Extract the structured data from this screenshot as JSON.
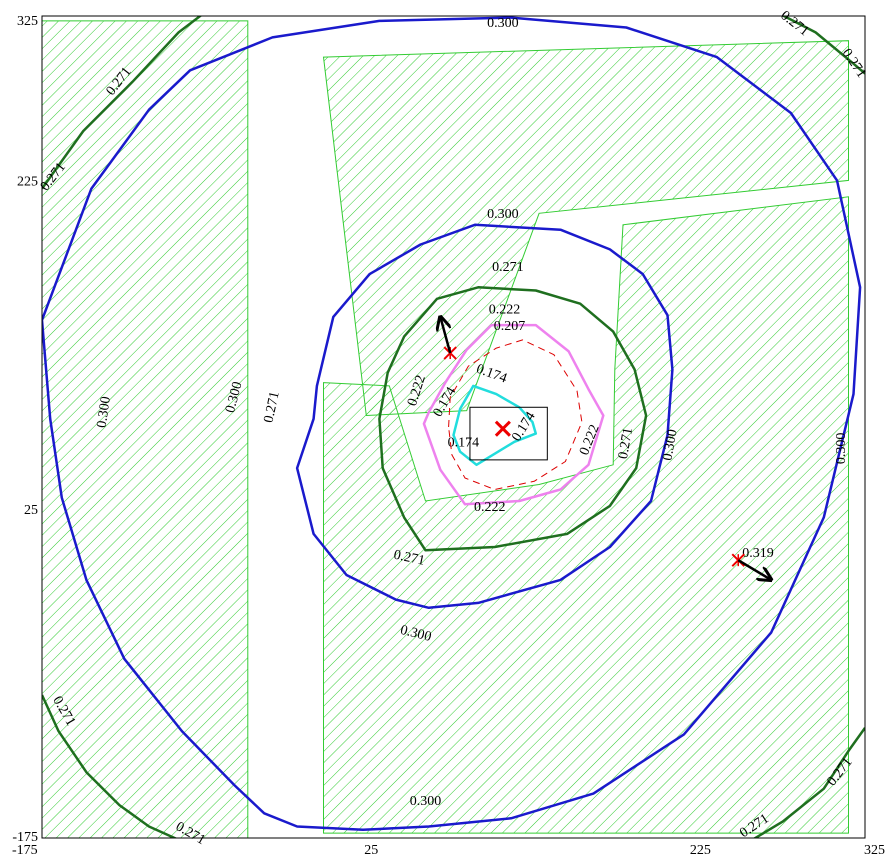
{
  "chart_data": {
    "type": "contour",
    "xlim": [
      -175,
      325
    ],
    "ylim": [
      -175,
      325
    ],
    "x_ticks": [
      "-175",
      "25",
      "225",
      "325"
    ],
    "y_ticks": [
      "325",
      "225",
      "25",
      "-175"
    ],
    "colors": {
      "hatch": "#33cc33",
      "c300": "#1a1acc",
      "c271": "#1f6f1f",
      "c222": "#ee82ee",
      "c207": "#dd0000",
      "c174": "#22dddd",
      "marker": "#ee0000",
      "frame": "#000000"
    },
    "hatched_regions": [
      {
        "name": "left-strip",
        "polygon": [
          [
            -175,
            322
          ],
          [
            -50,
            322
          ],
          [
            -50,
            -175
          ],
          [
            -175,
            -175
          ]
        ]
      },
      {
        "name": "upper-right",
        "polygon": [
          [
            -4,
            300
          ],
          [
            315,
            310
          ],
          [
            315,
            225
          ],
          [
            127,
            205
          ],
          [
            83,
            85
          ],
          [
            22,
            82
          ]
        ]
      },
      {
        "name": "lower-right",
        "polygon": [
          [
            -4,
            102
          ],
          [
            36,
            100
          ],
          [
            58,
            30
          ],
          [
            127,
            40
          ],
          [
            172,
            52
          ],
          [
            173,
            110
          ],
          [
            178,
            198
          ],
          [
            315,
            215
          ],
          [
            315,
            -172
          ],
          [
            -4,
            -172
          ],
          [
            -4,
            12
          ]
        ]
      }
    ],
    "contours": [
      {
        "level": "0.300",
        "color_key": "c300",
        "points": [
          [
            -175,
            140
          ],
          [
            -145,
            220
          ],
          [
            -110,
            268
          ],
          [
            -85,
            292
          ],
          [
            -35,
            312
          ],
          [
            30,
            322
          ],
          [
            110,
            324
          ],
          [
            180,
            318
          ],
          [
            235,
            300
          ],
          [
            280,
            266
          ],
          [
            308,
            225
          ],
          [
            322,
            160
          ],
          [
            318,
            95
          ],
          [
            300,
            20
          ],
          [
            268,
            -50
          ],
          [
            215,
            -112
          ],
          [
            160,
            -148
          ],
          [
            110,
            -163
          ],
          [
            60,
            -168
          ],
          [
            20,
            -170
          ],
          [
            -20,
            -168
          ],
          [
            -40,
            -160
          ],
          [
            -58,
            -143
          ],
          [
            -90,
            -110
          ],
          [
            -125,
            -66
          ],
          [
            -148,
            -18
          ],
          [
            -163,
            32
          ],
          [
            -170,
            80
          ]
        ]
      },
      {
        "name": "0.300-inner",
        "level": "0.300",
        "color_key": "c300",
        "points": [
          [
            -10,
            80
          ],
          [
            -8,
            100
          ],
          [
            2,
            142
          ],
          [
            24,
            168
          ],
          [
            55,
            186
          ],
          [
            88,
            198
          ],
          [
            140,
            195
          ],
          [
            170,
            183
          ],
          [
            190,
            168
          ],
          [
            205,
            143
          ],
          [
            208,
            110
          ],
          [
            205,
            70
          ],
          [
            195,
            30
          ],
          [
            170,
            2
          ],
          [
            140,
            -18
          ],
          [
            90,
            -32
          ],
          [
            60,
            -35
          ],
          [
            40,
            -30
          ],
          [
            10,
            -15
          ],
          [
            -10,
            10
          ],
          [
            -20,
            50
          ]
        ]
      },
      {
        "name": "0.271-inner",
        "level": "0.271",
        "color_key": "c271",
        "points": [
          [
            30,
            80
          ],
          [
            35,
            108
          ],
          [
            45,
            130
          ],
          [
            65,
            153
          ],
          [
            90,
            160
          ],
          [
            125,
            158
          ],
          [
            152,
            150
          ],
          [
            172,
            133
          ],
          [
            185,
            110
          ],
          [
            192,
            82
          ],
          [
            186,
            50
          ],
          [
            170,
            27
          ],
          [
            144,
            10
          ],
          [
            100,
            2
          ],
          [
            58,
            0
          ],
          [
            45,
            20
          ],
          [
            32,
            50
          ]
        ]
      },
      {
        "name": "0.271-topleft",
        "level": "0.271",
        "color_key": "c271",
        "points": [
          [
            -175,
            220
          ],
          [
            -150,
            255
          ],
          [
            -120,
            285
          ],
          [
            -92,
            315
          ],
          [
            -75,
            328
          ]
        ]
      },
      {
        "name": "0.271-topright",
        "level": "0.271",
        "color_key": "c271",
        "points": [
          [
            270,
            328
          ],
          [
            295,
            315
          ],
          [
            318,
            296
          ],
          [
            325,
            290
          ]
        ]
      },
      {
        "name": "0.271-bottomleft",
        "level": "0.271",
        "color_key": "c271",
        "points": [
          [
            -175,
            -88
          ],
          [
            -165,
            -110
          ],
          [
            -148,
            -135
          ],
          [
            -128,
            -155
          ],
          [
            -110,
            -168
          ],
          [
            -90,
            -177
          ]
        ]
      },
      {
        "name": "0.271-bottomright",
        "level": "0.271",
        "color_key": "c271",
        "points": [
          [
            255,
            -177
          ],
          [
            275,
            -165
          ],
          [
            300,
            -145
          ],
          [
            315,
            -122
          ],
          [
            325,
            -108
          ]
        ]
      },
      {
        "name": "0.222",
        "level": "0.222",
        "color_key": "c222",
        "points": [
          [
            57,
            77
          ],
          [
            60,
            84
          ],
          [
            70,
            102
          ],
          [
            83,
            122
          ],
          [
            98,
            137
          ],
          [
            125,
            137
          ],
          [
            145,
            121
          ],
          [
            157,
            98
          ],
          [
            166,
            82
          ],
          [
            157,
            52
          ],
          [
            140,
            37
          ],
          [
            115,
            30
          ],
          [
            82,
            28
          ],
          [
            67,
            49
          ]
        ]
      },
      {
        "name": "0.207",
        "level": "0.207",
        "color_key": "c207",
        "points": [
          [
            72,
            75
          ],
          [
            73,
            93
          ],
          [
            84,
            112
          ],
          [
            101,
            123
          ],
          [
            117,
            128
          ],
          [
            136,
            119
          ],
          [
            150,
            97
          ],
          [
            153,
            78
          ],
          [
            143,
            54
          ],
          [
            124,
            42
          ],
          [
            100,
            37
          ],
          [
            82,
            44
          ],
          [
            74,
            58
          ]
        ]
      },
      {
        "name": "0.174",
        "level": "0.174",
        "color_key": "c174",
        "points": [
          [
            75,
            70
          ],
          [
            79,
            86
          ],
          [
            87,
            100
          ],
          [
            101,
            95
          ],
          [
            115,
            87
          ],
          [
            123,
            78
          ],
          [
            125,
            71
          ],
          [
            112,
            66
          ],
          [
            89,
            52
          ],
          [
            79,
            60
          ]
        ]
      }
    ],
    "contour_labels": [
      {
        "text": "0.300",
        "x": 105,
        "y": 325,
        "angle": 0
      },
      {
        "text": "0.271",
        "x": -128,
        "y": 285,
        "angle": -52
      },
      {
        "text": "0.271",
        "x": -168,
        "y": 227,
        "angle": -52
      },
      {
        "text": "0.271",
        "x": 282,
        "y": 322,
        "angle": 38
      },
      {
        "text": "0.271",
        "x": 318,
        "y": 296,
        "angle": 56
      },
      {
        "text": "0.300",
        "x": 105,
        "y": 204,
        "angle": 0
      },
      {
        "text": "0.271",
        "x": 108,
        "y": 172,
        "angle": 0
      },
      {
        "text": "0.222",
        "x": 106,
        "y": 146,
        "angle": 0
      },
      {
        "text": "0.207",
        "x": 109,
        "y": 136,
        "angle": 0
      },
      {
        "text": "0.300",
        "x": -58,
        "y": 93,
        "angle": -75
      },
      {
        "text": "0.271",
        "x": -35,
        "y": 87,
        "angle": -78
      },
      {
        "text": "0.222",
        "x": 53,
        "y": 97,
        "angle": -72
      },
      {
        "text": "0.174",
        "x": 70,
        "y": 90,
        "angle": -60
      },
      {
        "text": "0.174",
        "x": 98,
        "y": 107,
        "angle": 20
      },
      {
        "text": "0.174",
        "x": 118,
        "y": 75,
        "angle": -58
      },
      {
        "text": "0.174",
        "x": 81,
        "y": 65,
        "angle": 0
      },
      {
        "text": "0.222",
        "x": 158,
        "y": 67,
        "angle": -68
      },
      {
        "text": "0.271",
        "x": 180,
        "y": 65,
        "angle": -80
      },
      {
        "text": "0.300",
        "x": 207,
        "y": 64,
        "angle": -80
      },
      {
        "text": "0.300",
        "x": 311,
        "y": 62,
        "angle": -90
      },
      {
        "text": "0.222",
        "x": 97,
        "y": 26,
        "angle": 0
      },
      {
        "text": "0.300",
        "x": -137,
        "y": 84,
        "angle": -82
      },
      {
        "text": "0.271",
        "x": 48,
        "y": -5,
        "angle": 12
      },
      {
        "text": "0.300",
        "x": 52,
        "y": -51,
        "angle": 14
      },
      {
        "text": "0.271",
        "x": -162,
        "y": -98,
        "angle": 60
      },
      {
        "text": "0.300",
        "x": 58,
        "y": -153,
        "angle": 0
      },
      {
        "text": "0.271",
        "x": -85,
        "y": -176,
        "angle": 30
      },
      {
        "text": "0.271",
        "x": 258,
        "y": -168,
        "angle": -33
      },
      {
        "text": "0.271",
        "x": 310,
        "y": -135,
        "angle": -52
      },
      {
        "text": "0.319",
        "x": 260,
        "y": -2,
        "angle": 0
      }
    ],
    "markers": [
      {
        "name": "center-target",
        "x": 105,
        "y": 74
      },
      {
        "name": "min-point",
        "x": 73,
        "y": 120
      },
      {
        "name": "max-point",
        "x": 248,
        "y": -6
      }
    ],
    "arrows": [
      {
        "name": "arrow-upper",
        "from": [
          73,
          120
        ],
        "to": [
          67,
          142
        ]
      },
      {
        "name": "arrow-right",
        "from": [
          248,
          -6
        ],
        "to": [
          268,
          -18
        ]
      }
    ],
    "box": {
      "x0": 85,
      "y0": 55,
      "x1": 132,
      "y1": 87
    }
  }
}
